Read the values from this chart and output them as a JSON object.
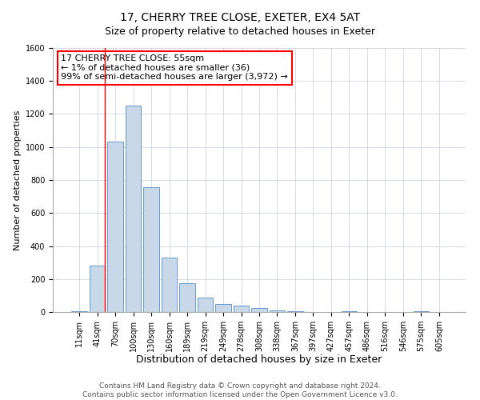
{
  "title": "17, CHERRY TREE CLOSE, EXETER, EX4 5AT",
  "subtitle": "Size of property relative to detached houses in Exeter",
  "xlabel": "Distribution of detached houses by size in Exeter",
  "ylabel": "Number of detached properties",
  "bin_labels": [
    "11sqm",
    "41sqm",
    "70sqm",
    "100sqm",
    "130sqm",
    "160sqm",
    "189sqm",
    "219sqm",
    "249sqm",
    "278sqm",
    "308sqm",
    "338sqm",
    "367sqm",
    "397sqm",
    "427sqm",
    "457sqm",
    "486sqm",
    "516sqm",
    "546sqm",
    "575sqm",
    "605sqm"
  ],
  "bar_values": [
    5,
    280,
    1035,
    1250,
    755,
    330,
    175,
    85,
    50,
    38,
    25,
    12,
    5,
    2,
    0,
    5,
    0,
    0,
    0,
    7,
    0
  ],
  "bar_color": "#c8d8e8",
  "bar_edge_color": "#6699cc",
  "red_line_bin_index": 1,
  "annotation_line1": "17 CHERRY TREE CLOSE: 55sqm",
  "annotation_line2": "← 1% of detached houses are smaller (36)",
  "annotation_line3": "99% of semi-detached houses are larger (3,972) →",
  "annotation_box_color": "white",
  "annotation_box_edge_color": "red",
  "ylim": [
    0,
    1600
  ],
  "yticks": [
    0,
    200,
    400,
    600,
    800,
    1000,
    1200,
    1400,
    1600
  ],
  "grid_color": "#d0d4e0",
  "footer_line1": "Contains HM Land Registry data © Crown copyright and database right 2024.",
  "footer_line2": "Contains public sector information licensed under the Open Government Licence v3.0.",
  "title_fontsize": 10,
  "subtitle_fontsize": 9,
  "xlabel_fontsize": 9,
  "ylabel_fontsize": 8,
  "tick_fontsize": 7,
  "annotation_fontsize": 8,
  "footer_fontsize": 6.5
}
